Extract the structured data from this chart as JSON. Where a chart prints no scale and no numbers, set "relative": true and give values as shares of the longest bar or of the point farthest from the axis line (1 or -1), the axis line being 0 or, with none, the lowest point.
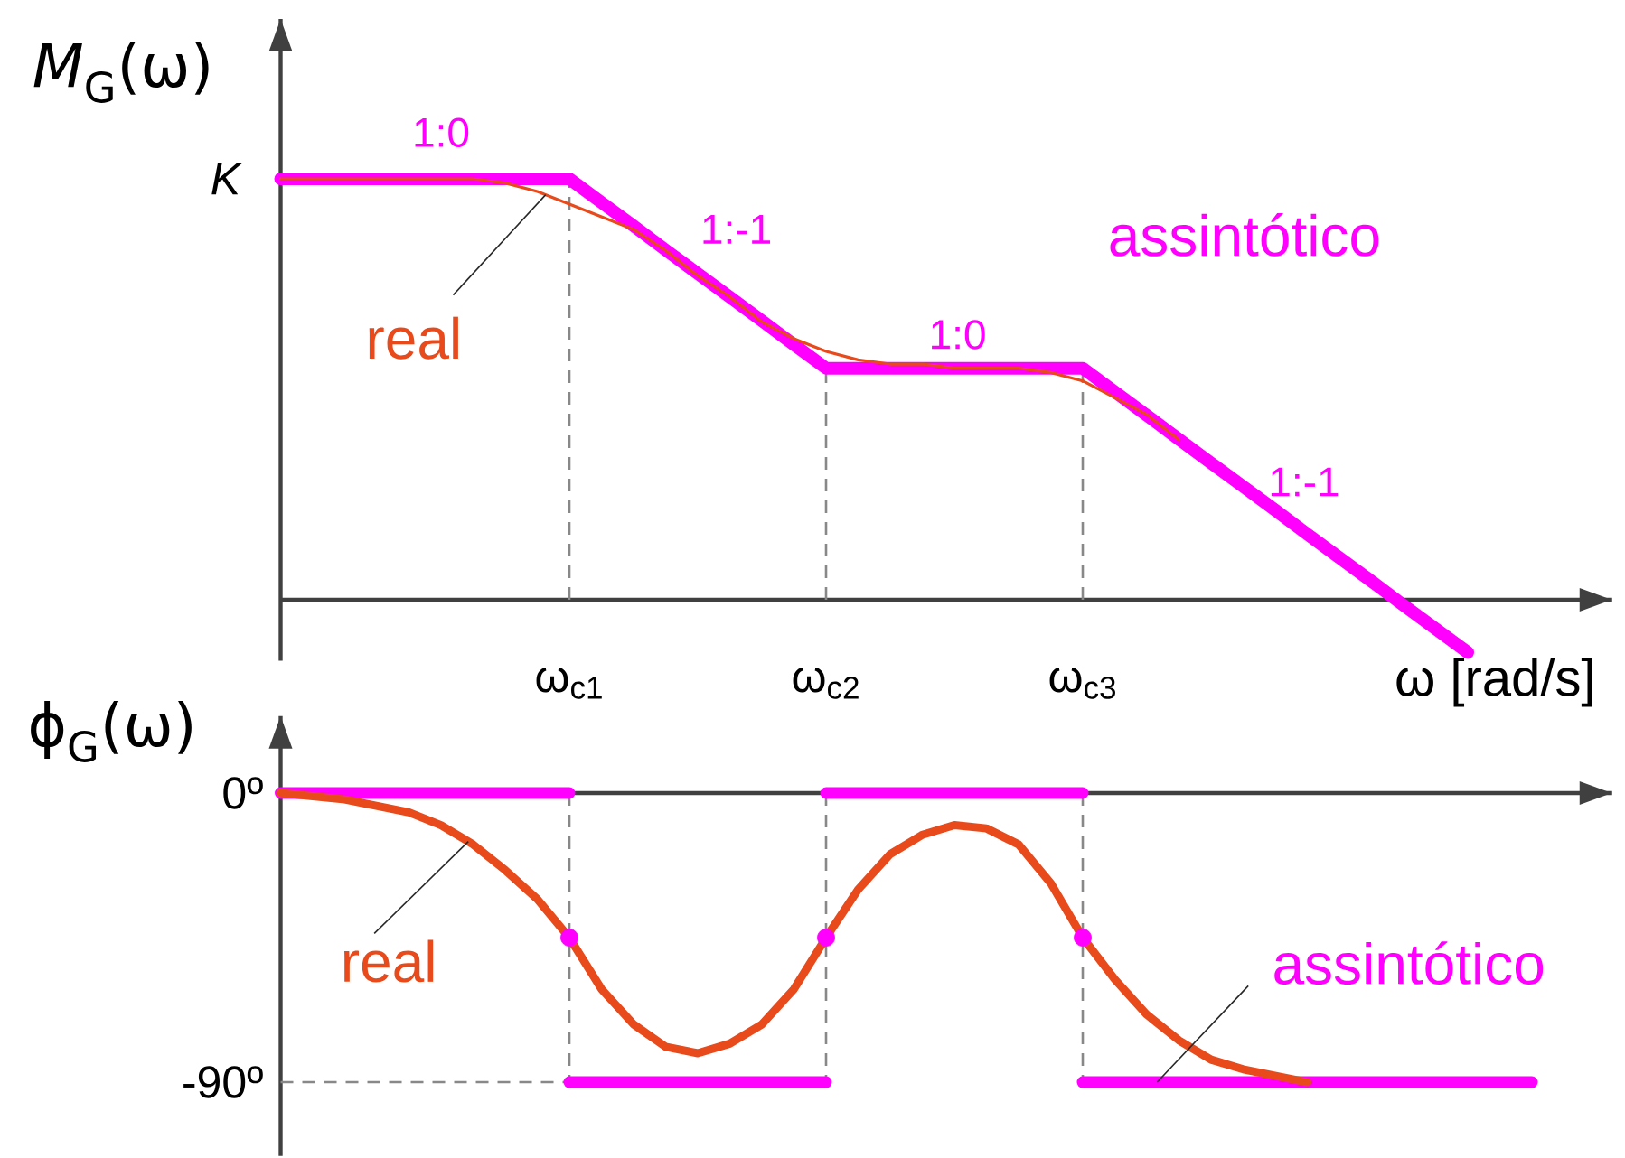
{
  "chart_data": [
    {
      "type": "line",
      "relative": true,
      "ylabel": "*M*$_{G}$(ω)",
      "xlabel": "ω [rad/s]",
      "categories": [
        null,
        null,
        null,
        null,
        null,
        null,
        null,
        null,
        null,
        "ω$_{c1}$",
        null,
        null,
        null,
        null,
        null,
        null,
        null,
        "ω$_{c2}$",
        null,
        null,
        null,
        null,
        null,
        null,
        null,
        "ω$_{c3}$",
        null,
        null,
        null,
        null,
        null,
        null,
        null,
        null,
        null,
        null,
        null,
        null,
        null,
        null
      ],
      "tick_labels": "x",
      "series": [
        {
          "name": "assintótico",
          "color": "#ff00ff",
          "values": [
            1,
            1,
            1,
            1,
            1,
            1,
            1,
            1,
            1,
            1,
            0.944,
            0.888,
            0.831,
            0.775,
            0.719,
            0.663,
            0.606,
            0.55,
            0.55,
            0.55,
            0.55,
            0.55,
            0.55,
            0.55,
            0.55,
            0.55,
            0.494,
            0.438,
            0.381,
            0.325,
            0.269,
            0.213,
            0.156,
            0.1,
            0.044,
            -0.013,
            -0.069,
            -0.125,
            null,
            null
          ]
        },
        {
          "name": "real",
          "color": "#e84a1b",
          "values": [
            1,
            1,
            1,
            1,
            1,
            1,
            1,
            0.99,
            0.97,
            0.94,
            0.91,
            0.88,
            0.83,
            0.77,
            0.72,
            0.66,
            0.62,
            0.59,
            0.57,
            0.56,
            0.56,
            0.55,
            0.55,
            0.55,
            0.54,
            0.52,
            0.48,
            0.44,
            0.38,
            null,
            null,
            null,
            null,
            null,
            null,
            null,
            null,
            null,
            null,
            null
          ]
        }
      ],
      "ref_lines": [
        {
          "axis": "x",
          "value": "ω$_{c1}$",
          "color": "#888888",
          "line_style": "dashed"
        },
        {
          "axis": "x",
          "value": "ω$_{c2}$",
          "color": "#888888",
          "line_style": "dashed"
        },
        {
          "axis": "x",
          "value": "ω$_{c3}$",
          "color": "#888888",
          "line_style": "dashed"
        }
      ],
      "annotations": [
        "K",
        "1:0",
        "1:-1",
        "1:0",
        "1:-1"
      ]
    },
    {
      "type": "line",
      "ylabel": "ϕ$_{G}$(ω)",
      "ylim": [
        -113,
        24
      ],
      "categories": [
        null,
        null,
        null,
        null,
        null,
        null,
        null,
        null,
        null,
        "ω$_{c1}$",
        null,
        null,
        null,
        null,
        null,
        null,
        null,
        "ω$_{c2}$",
        null,
        null,
        null,
        null,
        null,
        null,
        null,
        "ω$_{c3}$",
        null,
        null,
        null,
        null,
        null,
        null,
        null,
        null,
        null,
        null,
        null,
        null,
        null,
        null
      ],
      "yticks": [
        {
          "value": 0,
          "label": "0º"
        },
        {
          "value": -90,
          "label": "-90º"
        }
      ],
      "tick_labels": "y",
      "series": [
        {
          "name": "assintótico",
          "color": "#ff00ff",
          "values": [
            0,
            0,
            0,
            0,
            0,
            0,
            0,
            0,
            0,
            0,
            null,
            null,
            null,
            null,
            null,
            null,
            null,
            0,
            0,
            0,
            0,
            0,
            0,
            0,
            0,
            0,
            null,
            null,
            null,
            null,
            null,
            null,
            null,
            null,
            null,
            null,
            null,
            null,
            null,
            null
          ]
        },
        {
          "color": "#ff00ff",
          "values": [
            null,
            null,
            null,
            null,
            null,
            null,
            null,
            null,
            null,
            -90,
            -90,
            -90,
            -90,
            -90,
            -90,
            -90,
            -90,
            -90,
            null,
            null,
            null,
            null,
            null,
            null,
            null,
            -90,
            -90,
            -90,
            -90,
            -90,
            -90,
            -90,
            -90,
            -90,
            -90,
            -90,
            -90,
            -90,
            -90,
            -90
          ]
        },
        {
          "name": "real",
          "color": "#e84a1b",
          "values": [
            0,
            -1,
            -2,
            -4,
            -6,
            -10,
            -16,
            -24,
            -33,
            -45,
            -61,
            -72,
            -79,
            -81,
            -78,
            -72,
            -61,
            -45,
            -30,
            -19,
            -13,
            -10,
            -11,
            -16,
            -28,
            -45,
            -58,
            -69,
            -77,
            -83,
            -86,
            -88,
            -90,
            null,
            null,
            null,
            null,
            null,
            null,
            null
          ]
        },
        {
          "type": "scatter",
          "color": "#ff00ff",
          "marker": "circle",
          "values": [
            null,
            null,
            null,
            null,
            null,
            null,
            null,
            null,
            null,
            -45,
            null,
            null,
            null,
            null,
            null,
            null,
            null,
            -45,
            null,
            null,
            null,
            null,
            null,
            null,
            null,
            -45,
            null,
            null,
            null,
            null,
            null,
            null,
            null,
            null,
            null,
            null,
            null,
            null,
            null,
            null
          ]
        }
      ],
      "ref_lines": [
        {
          "axis": "x",
          "value": "ω$_{c1}$",
          "color": "#888888",
          "line_style": "dashed"
        },
        {
          "axis": "x",
          "value": "ω$_{c2}$",
          "color": "#888888",
          "line_style": "dashed"
        },
        {
          "axis": "x",
          "value": "ω$_{c3}$",
          "color": "#888888",
          "line_style": "dashed"
        },
        {
          "axis": "y",
          "value": -90,
          "color": "#888888",
          "line_style": "dashed"
        }
      ]
    }
  ]
}
